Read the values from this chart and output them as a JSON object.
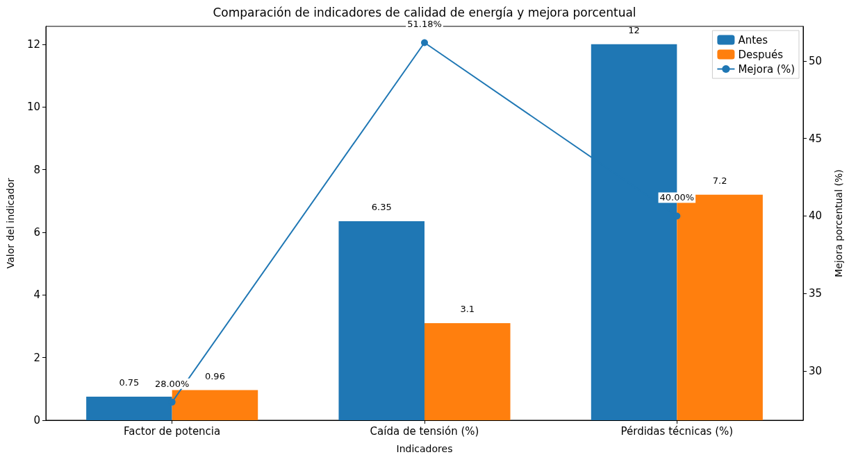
{
  "chart_data": {
    "type": "bar",
    "title": "Comparación de indicadores de calidad de energía y mejora porcentual",
    "xlabel": "Indicadores",
    "ylabel": "Valor del indicador",
    "y2label": "Mejora porcentual (%)",
    "categories": [
      "Factor de potencia",
      "Caída de tensión (%)",
      "Pérdidas técnicas (%)"
    ],
    "series": [
      {
        "name": "Antes",
        "color": "#1f77b4",
        "values": [
          0.75,
          6.35,
          12
        ]
      },
      {
        "name": "Después",
        "color": "#ff7f0e",
        "values": [
          0.96,
          3.1,
          7.2
        ]
      },
      {
        "name": "Mejora (%)",
        "type": "line",
        "axis": "y2",
        "color": "#1f77b4",
        "values": [
          28,
          51.18,
          40
        ],
        "value_labels": [
          "28.00%",
          "51.18%",
          "40.00%"
        ],
        "marker": "circle",
        "line_style": "solid"
      }
    ],
    "data_labels": true,
    "ylim": [
      0,
      12.57
    ],
    "yticks": [
      0,
      2,
      4,
      6,
      8,
      10,
      12
    ],
    "y2lim": [
      26.83,
      52.23
    ],
    "y2ticks": [
      30,
      35,
      40,
      45,
      50
    ],
    "legend": "top right",
    "grid": false
  }
}
